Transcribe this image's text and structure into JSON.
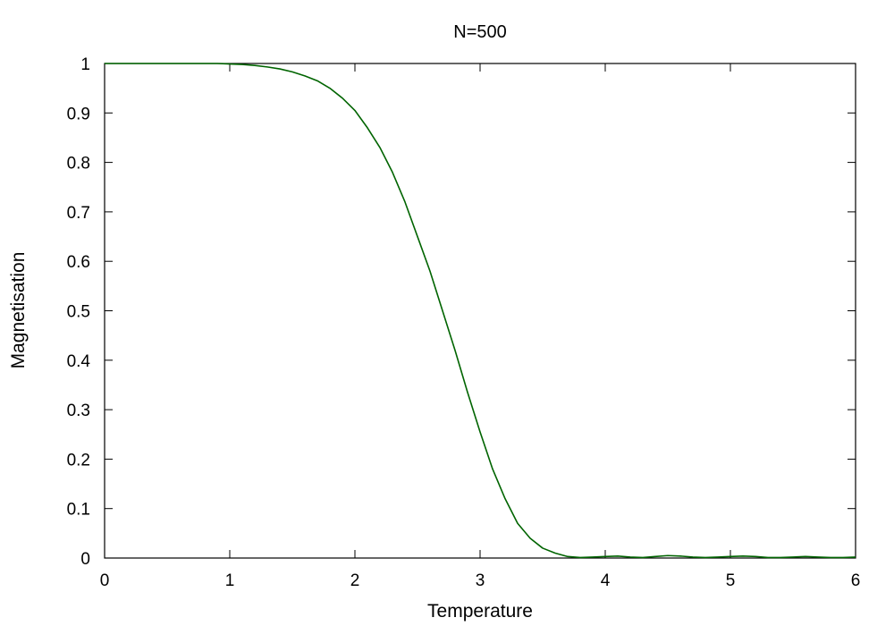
{
  "chart_data": {
    "type": "line",
    "title": "N=500",
    "xlabel": "Temperature",
    "ylabel": "Magnetisation",
    "xlim": [
      0,
      6
    ],
    "ylim": [
      0,
      1
    ],
    "xticks": [
      "0",
      "1",
      "2",
      "3",
      "4",
      "5",
      "6"
    ],
    "yticks": [
      "0",
      "0.1",
      "0.2",
      "0.3",
      "0.4",
      "0.5",
      "0.6",
      "0.7",
      "0.8",
      "0.9",
      "1"
    ],
    "grid": false,
    "legend": "none",
    "series": [
      {
        "color": "#006400",
        "points": [
          [
            0.0,
            1.0
          ],
          [
            0.1,
            1.0
          ],
          [
            0.2,
            1.0
          ],
          [
            0.3,
            1.0
          ],
          [
            0.4,
            1.0
          ],
          [
            0.5,
            1.0
          ],
          [
            0.6,
            1.0
          ],
          [
            0.7,
            1.0
          ],
          [
            0.8,
            1.0
          ],
          [
            0.9,
            1.0
          ],
          [
            1.0,
            0.999
          ],
          [
            1.1,
            0.998
          ],
          [
            1.2,
            0.996
          ],
          [
            1.3,
            0.993
          ],
          [
            1.4,
            0.989
          ],
          [
            1.5,
            0.983
          ],
          [
            1.6,
            0.975
          ],
          [
            1.7,
            0.965
          ],
          [
            1.8,
            0.95
          ],
          [
            1.9,
            0.93
          ],
          [
            2.0,
            0.905
          ],
          [
            2.1,
            0.87
          ],
          [
            2.2,
            0.83
          ],
          [
            2.3,
            0.78
          ],
          [
            2.4,
            0.72
          ],
          [
            2.5,
            0.65
          ],
          [
            2.6,
            0.58
          ],
          [
            2.7,
            0.5
          ],
          [
            2.8,
            0.42
          ],
          [
            2.9,
            0.335
          ],
          [
            3.0,
            0.255
          ],
          [
            3.1,
            0.18
          ],
          [
            3.2,
            0.12
          ],
          [
            3.3,
            0.07
          ],
          [
            3.4,
            0.04
          ],
          [
            3.5,
            0.02
          ],
          [
            3.6,
            0.01
          ],
          [
            3.7,
            0.003
          ],
          [
            3.8,
            0.001
          ],
          [
            3.9,
            0.002
          ],
          [
            4.0,
            0.003
          ],
          [
            4.1,
            0.004
          ],
          [
            4.2,
            0.002
          ],
          [
            4.3,
            0.001
          ],
          [
            4.4,
            0.003
          ],
          [
            4.5,
            0.005
          ],
          [
            4.6,
            0.004
          ],
          [
            4.7,
            0.002
          ],
          [
            4.8,
            0.001
          ],
          [
            4.9,
            0.002
          ],
          [
            5.0,
            0.003
          ],
          [
            5.1,
            0.004
          ],
          [
            5.2,
            0.003
          ],
          [
            5.3,
            0.001
          ],
          [
            5.4,
            0.001
          ],
          [
            5.5,
            0.002
          ],
          [
            5.6,
            0.003
          ],
          [
            5.7,
            0.002
          ],
          [
            5.8,
            0.001
          ],
          [
            5.9,
            0.001
          ],
          [
            6.0,
            0.002
          ]
        ]
      }
    ]
  }
}
